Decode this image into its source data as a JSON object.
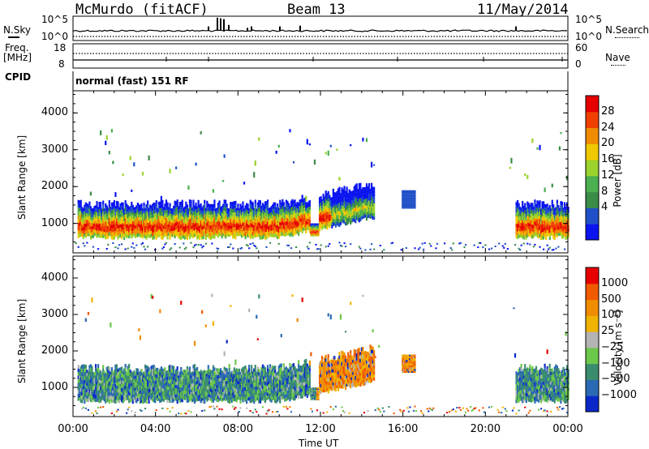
{
  "header": {
    "station": "McMurdo (fitACF)",
    "beam": "Beam 13",
    "date": "11/May/2014"
  },
  "status_panel": {
    "nsky_label": "N.Sky",
    "nsky_ticks": [
      "10^5",
      "10^0"
    ],
    "nsearch_label": "N.Search",
    "nsearch_ticks": [
      "10^5",
      "10^0"
    ],
    "freq_label_line1": "Freq.",
    "freq_label_line2": "[MHz]",
    "freq_ticks": [
      "18",
      "8"
    ],
    "nave_label": "Nave",
    "nave_ticks": [
      "60",
      "0"
    ],
    "cpid_label": "CPID",
    "cpid_text": "normal (fast) 151 RF"
  },
  "chart_data": [
    {
      "type": "heatmap",
      "name": "power",
      "ylabel": "Slant Range [km]",
      "yticks": [
        "4000",
        "3000",
        "2000",
        "1000"
      ],
      "ylim": [
        200,
        4600
      ],
      "x_time_hours": [
        0,
        24
      ],
      "colorbar_label": "Power [dB]",
      "colorbar_ticks": [
        "28",
        "24",
        "20",
        "16",
        "12",
        "8",
        "4"
      ],
      "colorbar_colors": [
        "#0a14f0",
        "#2050c8",
        "#3a8c46",
        "#4caf50",
        "#9bd22c",
        "#f0c800",
        "#f08c00",
        "#f04000",
        "#e60000"
      ]
    },
    {
      "type": "heatmap",
      "name": "velocity",
      "ylabel": "Slant Range [km]",
      "yticks": [
        "4000",
        "3000",
        "2000",
        "1000"
      ],
      "ylim": [
        200,
        4600
      ],
      "x_time_hours": [
        0,
        24
      ],
      "xticks": [
        "00:00",
        "04:00",
        "08:00",
        "12:00",
        "16:00",
        "20:00",
        "00:00"
      ],
      "xlabel": "Time UT",
      "colorbar_label": "Velocity [m s⁻¹]",
      "colorbar_ticks": [
        "1000",
        "500",
        "100",
        "25",
        "−25",
        "−100",
        "−500",
        "−1000"
      ],
      "colorbar_colors": [
        "#0a28c8",
        "#2a6ab4",
        "#3a8c6e",
        "#6cc84a",
        "#b4b4b4",
        "#f0b400",
        "#f08c00",
        "#f05a00",
        "#e60000"
      ]
    }
  ]
}
